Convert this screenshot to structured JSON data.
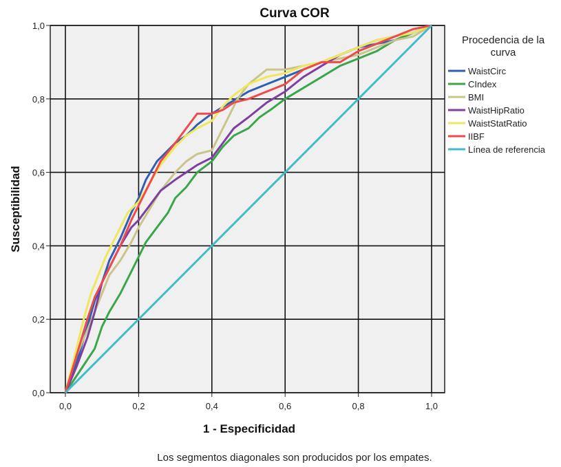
{
  "chart_data": {
    "type": "line",
    "title": "Curva COR",
    "xlabel": "1 - Especificidad",
    "ylabel": "Susceptibilidad",
    "xlim": [
      0,
      1
    ],
    "ylim": [
      0,
      1
    ],
    "xticks": [
      "0,0",
      "0,2",
      "0,4",
      "0,6",
      "0,8",
      "1,0"
    ],
    "yticks": [
      "0,0",
      "0,2",
      "0,4",
      "0,6",
      "0,8",
      "1,0"
    ],
    "grid": true,
    "legend_title": "Procedencia de la curva",
    "legend_position": "right",
    "footnote": "Los segmentos diagonales son producidos por los empates.",
    "series": [
      {
        "name": "WaistCirc",
        "color": "#2f5fb3",
        "x": [
          0,
          0.03,
          0.06,
          0.08,
          0.1,
          0.12,
          0.15,
          0.18,
          0.2,
          0.22,
          0.25,
          0.28,
          0.3,
          0.33,
          0.36,
          0.4,
          0.45,
          0.5,
          0.55,
          0.6,
          0.65,
          0.7,
          0.75,
          0.8,
          0.85,
          0.9,
          0.95,
          1.0
        ],
        "y": [
          0,
          0.08,
          0.18,
          0.25,
          0.3,
          0.36,
          0.42,
          0.49,
          0.53,
          0.58,
          0.63,
          0.66,
          0.68,
          0.7,
          0.73,
          0.76,
          0.79,
          0.82,
          0.84,
          0.86,
          0.88,
          0.9,
          0.92,
          0.94,
          0.95,
          0.96,
          0.98,
          1.0
        ]
      },
      {
        "name": "CIndex",
        "color": "#3aa64a",
        "x": [
          0,
          0.04,
          0.08,
          0.1,
          0.12,
          0.15,
          0.18,
          0.2,
          0.22,
          0.25,
          0.28,
          0.3,
          0.33,
          0.36,
          0.4,
          0.43,
          0.46,
          0.5,
          0.53,
          0.56,
          0.6,
          0.65,
          0.7,
          0.75,
          0.8,
          0.85,
          0.9,
          0.95,
          1.0
        ],
        "y": [
          0,
          0.06,
          0.12,
          0.18,
          0.22,
          0.27,
          0.33,
          0.37,
          0.41,
          0.45,
          0.49,
          0.53,
          0.56,
          0.6,
          0.63,
          0.67,
          0.7,
          0.72,
          0.75,
          0.77,
          0.8,
          0.83,
          0.86,
          0.89,
          0.91,
          0.93,
          0.96,
          0.98,
          1.0
        ]
      },
      {
        "name": "BMI",
        "color": "#c9c48a",
        "x": [
          0,
          0.03,
          0.06,
          0.08,
          0.1,
          0.12,
          0.15,
          0.18,
          0.2,
          0.23,
          0.26,
          0.3,
          0.33,
          0.36,
          0.4,
          0.43,
          0.47,
          0.5,
          0.55,
          0.6,
          0.65,
          0.7,
          0.75,
          0.8,
          0.85,
          0.9,
          0.95,
          1.0
        ],
        "y": [
          0,
          0.1,
          0.17,
          0.22,
          0.27,
          0.32,
          0.36,
          0.41,
          0.45,
          0.5,
          0.55,
          0.6,
          0.63,
          0.65,
          0.66,
          0.72,
          0.8,
          0.84,
          0.88,
          0.88,
          0.89,
          0.9,
          0.91,
          0.92,
          0.94,
          0.96,
          0.97,
          1.0
        ]
      },
      {
        "name": "WaistHipRatio",
        "color": "#7d3fa0",
        "x": [
          0,
          0.03,
          0.06,
          0.08,
          0.1,
          0.12,
          0.15,
          0.18,
          0.2,
          0.23,
          0.26,
          0.3,
          0.33,
          0.36,
          0.4,
          0.43,
          0.46,
          0.5,
          0.55,
          0.6,
          0.65,
          0.7,
          0.75,
          0.8,
          0.85,
          0.9,
          0.95,
          1.0
        ],
        "y": [
          0,
          0.07,
          0.15,
          0.22,
          0.3,
          0.34,
          0.4,
          0.45,
          0.47,
          0.51,
          0.55,
          0.58,
          0.6,
          0.62,
          0.64,
          0.68,
          0.72,
          0.75,
          0.79,
          0.82,
          0.86,
          0.89,
          0.92,
          0.94,
          0.96,
          0.97,
          0.98,
          1.0
        ]
      },
      {
        "name": "WaistStatRatio",
        "color": "#efe85a",
        "x": [
          0,
          0.03,
          0.05,
          0.07,
          0.09,
          0.11,
          0.14,
          0.17,
          0.2,
          0.23,
          0.26,
          0.3,
          0.33,
          0.36,
          0.4,
          0.43,
          0.46,
          0.5,
          0.55,
          0.6,
          0.65,
          0.7,
          0.75,
          0.8,
          0.85,
          0.9,
          0.95,
          1.0
        ],
        "y": [
          0,
          0.12,
          0.2,
          0.27,
          0.32,
          0.37,
          0.43,
          0.49,
          0.52,
          0.57,
          0.62,
          0.67,
          0.7,
          0.72,
          0.74,
          0.78,
          0.81,
          0.84,
          0.86,
          0.87,
          0.89,
          0.9,
          0.92,
          0.94,
          0.96,
          0.97,
          0.98,
          1.0
        ]
      },
      {
        "name": "IIBF",
        "color": "#ef4a4a",
        "x": [
          0,
          0.03,
          0.06,
          0.08,
          0.1,
          0.12,
          0.15,
          0.18,
          0.2,
          0.23,
          0.26,
          0.3,
          0.33,
          0.36,
          0.4,
          0.43,
          0.46,
          0.5,
          0.55,
          0.6,
          0.65,
          0.7,
          0.75,
          0.8,
          0.85,
          0.9,
          0.95,
          1.0
        ],
        "y": [
          0,
          0.1,
          0.2,
          0.26,
          0.3,
          0.34,
          0.4,
          0.47,
          0.51,
          0.57,
          0.63,
          0.68,
          0.72,
          0.76,
          0.76,
          0.77,
          0.79,
          0.8,
          0.82,
          0.84,
          0.88,
          0.9,
          0.9,
          0.93,
          0.95,
          0.97,
          0.99,
          1.0
        ]
      },
      {
        "name": "Línea de referencia",
        "color": "#3fbccc",
        "x": [
          0,
          1
        ],
        "y": [
          0,
          1
        ]
      }
    ]
  }
}
